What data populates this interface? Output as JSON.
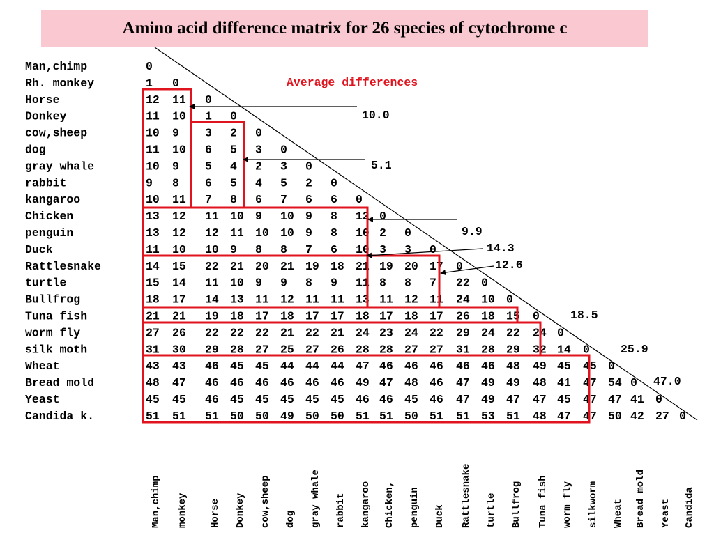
{
  "title": "Amino acid difference matrix for 26 species of cytochrome c",
  "legend_label": "Average differences",
  "colors": {
    "title_bg": "#f9c8d0",
    "box_red": "#e0141e",
    "text": "#000000"
  },
  "row_labels": [
    "Man,chimp",
    "Rh. monkey",
    "Horse",
    "Donkey",
    "cow,sheep",
    "dog",
    "gray whale",
    "rabbit",
    "kangaroo",
    "Chicken",
    "penguin",
    "Duck",
    "Rattlesnake",
    "turtle",
    "Bullfrog",
    "Tuna fish",
    "worm fly",
    "silk moth",
    "Wheat",
    "Bread mold",
    " Yeast",
    "Candida k."
  ],
  "column_labels": [
    "Man,chimp",
    "monkey",
    "Horse",
    "Donkey",
    "cow,sheep",
    "dog",
    "gray whale",
    "rabbit",
    "kangaroo",
    "Chicken,",
    "penguin",
    "Duck",
    "Rattlesnake",
    "turtle",
    "Bullfrog",
    "Tuna fish",
    "worm fly",
    "silkworm",
    "Wheat",
    "Bread mold",
    "Yeast",
    "Candida"
  ],
  "matrix": [
    [
      0
    ],
    [
      1,
      0
    ],
    [
      12,
      11,
      0
    ],
    [
      11,
      10,
      1,
      0
    ],
    [
      10,
      9,
      3,
      2,
      0
    ],
    [
      11,
      10,
      6,
      5,
      3,
      0
    ],
    [
      10,
      9,
      5,
      4,
      2,
      3,
      0
    ],
    [
      9,
      8,
      6,
      5,
      4,
      5,
      2,
      0
    ],
    [
      10,
      11,
      7,
      8,
      6,
      7,
      6,
      6,
      0
    ],
    [
      13,
      12,
      11,
      10,
      9,
      10,
      9,
      8,
      12,
      0
    ],
    [
      13,
      12,
      12,
      11,
      10,
      10,
      9,
      8,
      10,
      2,
      0
    ],
    [
      11,
      10,
      10,
      9,
      8,
      8,
      7,
      6,
      10,
      3,
      3,
      0
    ],
    [
      14,
      15,
      22,
      21,
      20,
      21,
      19,
      18,
      21,
      19,
      20,
      17,
      0
    ],
    [
      15,
      14,
      11,
      10,
      9,
      9,
      8,
      9,
      11,
      8,
      8,
      7,
      22,
      0
    ],
    [
      18,
      17,
      14,
      13,
      11,
      12,
      11,
      11,
      13,
      11,
      12,
      11,
      24,
      10,
      0
    ],
    [
      21,
      21,
      19,
      18,
      17,
      18,
      17,
      17,
      18,
      17,
      18,
      17,
      26,
      18,
      15,
      0
    ],
    [
      27,
      26,
      22,
      22,
      22,
      21,
      22,
      21,
      24,
      23,
      24,
      22,
      29,
      24,
      22,
      24,
      0
    ],
    [
      31,
      30,
      29,
      28,
      27,
      25,
      27,
      26,
      28,
      28,
      27,
      27,
      31,
      28,
      29,
      32,
      14,
      0
    ],
    [
      43,
      43,
      46,
      45,
      45,
      44,
      44,
      44,
      47,
      46,
      46,
      46,
      46,
      46,
      48,
      49,
      45,
      45,
      0
    ],
    [
      48,
      47,
      46,
      46,
      46,
      46,
      46,
      46,
      49,
      47,
      48,
      46,
      47,
      49,
      49,
      48,
      41,
      47,
      54,
      0
    ],
    [
      45,
      45,
      46,
      45,
      45,
      45,
      45,
      45,
      46,
      46,
      45,
      46,
      47,
      49,
      47,
      47,
      45,
      47,
      47,
      41,
      0
    ],
    [
      51,
      51,
      51,
      50,
      50,
      49,
      50,
      50,
      51,
      51,
      50,
      51,
      51,
      53,
      51,
      48,
      47,
      47,
      50,
      42,
      27,
      0
    ]
  ],
  "averages": [
    "10.0",
    "5.1",
    "9.9",
    "14.3",
    "12.6",
    "18.5",
    "25.9",
    "47.0"
  ]
}
